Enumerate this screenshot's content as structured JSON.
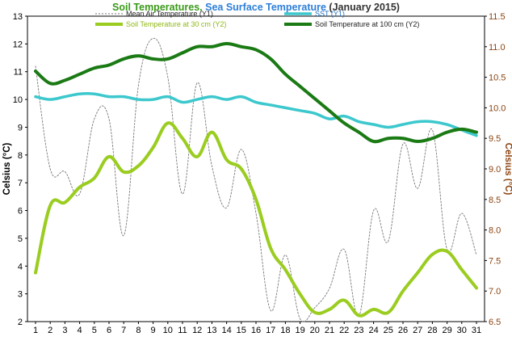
{
  "chart_data": {
    "type": "line",
    "title_parts": [
      {
        "text": "Soil Temperatures",
        "color": "#3a9a1a"
      },
      {
        "text": ", ",
        "color": "#3a9a1a"
      },
      {
        "text": "Sea Surface Temperature",
        "color": "#2e7fd8"
      },
      {
        "text": " (January 2015)",
        "color": "#333333"
      }
    ],
    "ylabel_left": "Celsius (°C)",
    "ylabel_right": "Celsius (°C)",
    "colors": {
      "axis_right": "#8B4513"
    },
    "x": [
      1,
      2,
      3,
      4,
      5,
      6,
      7,
      8,
      9,
      10,
      11,
      12,
      13,
      14,
      15,
      16,
      17,
      18,
      19,
      20,
      21,
      22,
      23,
      24,
      25,
      26,
      27,
      28,
      29,
      30,
      31
    ],
    "x_ticks": [
      "1",
      "2",
      "3",
      "4",
      "5",
      "6",
      "7",
      "8",
      "9",
      "10",
      "11",
      "12",
      "13",
      "14",
      "15",
      "16",
      "17",
      "18",
      "19",
      "20",
      "21",
      "22",
      "23",
      "24",
      "25",
      "26",
      "27",
      "28",
      "29",
      "30",
      "31"
    ],
    "y_left": {
      "min": 2,
      "max": 13,
      "ticks": [
        "2",
        "3",
        "4",
        "5",
        "6",
        "7",
        "8",
        "9",
        "10",
        "11",
        "12",
        "13"
      ]
    },
    "y_right": {
      "min": 6.5,
      "max": 11.5,
      "ticks": [
        "6.5",
        "7.0",
        "7.5",
        "8.0",
        "8.5",
        "9.0",
        "9.5",
        "10.0",
        "10.5",
        "11.0",
        "11.5"
      ]
    },
    "series": [
      {
        "name": "Mean Air Temperature (Y1)",
        "axis": "left",
        "color": "#777777",
        "style": "dashed",
        "values": [
          11.2,
          7.5,
          7.4,
          6.6,
          9.3,
          9.3,
          5.1,
          10.5,
          12.2,
          10.8,
          6.6,
          10.6,
          7.6,
          6.1,
          8.2,
          5.9,
          2.4,
          4.4,
          2.1,
          2.5,
          3.2,
          4.6,
          2.2,
          6.0,
          4.9,
          8.4,
          6.8,
          8.9,
          4.6,
          5.9,
          4.4
        ]
      },
      {
        "name": "SST (Y1)",
        "axis": "left",
        "color": "#3cc8cd",
        "style": "solid",
        "values": [
          10.1,
          10.0,
          10.1,
          10.2,
          10.2,
          10.1,
          10.1,
          10.0,
          10.0,
          10.1,
          9.9,
          10.0,
          10.1,
          10.0,
          10.1,
          9.9,
          9.8,
          9.7,
          9.6,
          9.5,
          9.3,
          9.4,
          9.2,
          9.1,
          9.0,
          9.1,
          9.2,
          9.2,
          9.1,
          8.9,
          8.7
        ]
      },
      {
        "name": "Soil Temperature at 30 cm (Y2)",
        "axis": "right",
        "color": "#9acd20",
        "style": "solid",
        "values": [
          7.3,
          8.4,
          8.45,
          8.7,
          8.85,
          9.2,
          8.95,
          9.05,
          9.35,
          9.75,
          9.5,
          9.2,
          9.6,
          9.15,
          9.0,
          8.5,
          7.7,
          7.35,
          6.95,
          6.65,
          6.7,
          6.85,
          6.6,
          6.7,
          6.65,
          7.0,
          7.3,
          7.6,
          7.65,
          7.35,
          7.05
        ]
      },
      {
        "name": "Soil Temperature at 100 cm (Y2)",
        "axis": "right",
        "color": "#1a7a14",
        "style": "solid",
        "values": [
          10.6,
          10.4,
          10.45,
          10.55,
          10.65,
          10.7,
          10.8,
          10.85,
          10.8,
          10.8,
          10.9,
          11.0,
          11.0,
          11.05,
          11.0,
          10.95,
          10.8,
          10.55,
          10.35,
          10.15,
          9.95,
          9.75,
          9.6,
          9.45,
          9.5,
          9.5,
          9.45,
          9.5,
          9.6,
          9.65,
          9.6
        ]
      }
    ]
  }
}
